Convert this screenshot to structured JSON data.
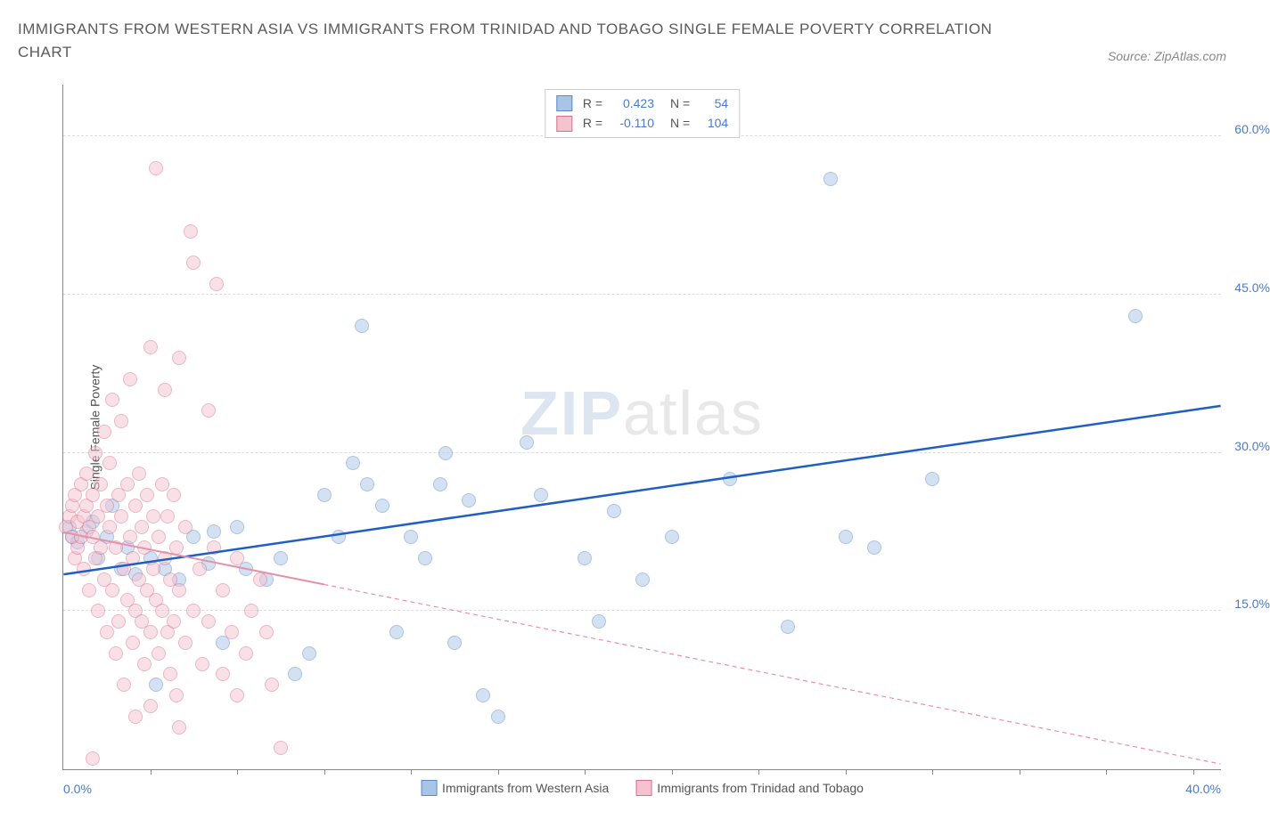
{
  "title": "IMMIGRANTS FROM WESTERN ASIA VS IMMIGRANTS FROM TRINIDAD AND TOBAGO SINGLE FEMALE POVERTY CORRELATION CHART",
  "source_label": "Source: ZipAtlas.com",
  "watermark_bold": "ZIP",
  "watermark_light": "atlas",
  "chart": {
    "type": "scatter",
    "y_axis_label": "Single Female Poverty",
    "xlim": [
      0,
      40
    ],
    "ylim": [
      0,
      65
    ],
    "x_min_label": "0.0%",
    "x_max_label": "40.0%",
    "y_ticks": [
      15,
      30,
      45,
      60
    ],
    "y_tick_labels": [
      "15.0%",
      "30.0%",
      "45.0%",
      "60.0%"
    ],
    "x_ticks": [
      3,
      6,
      9,
      12,
      15,
      18,
      21,
      24,
      27,
      30,
      33,
      36,
      39
    ],
    "background_color": "#ffffff",
    "grid_color": "#dddddd",
    "axis_color": "#888888",
    "label_color": "#4a7bc8",
    "marker_radius": 8,
    "marker_opacity": 0.5,
    "series": [
      {
        "name": "Immigrants from Western Asia",
        "color": "#6699dd",
        "fill": "#a8c5e8",
        "stroke": "#5a8bc4",
        "r": "0.423",
        "n": "54",
        "regression": {
          "x1": 0,
          "y1": 18.5,
          "x2": 40,
          "y2": 34.5,
          "color": "#1f5fbf",
          "width": 2.5,
          "dash": "none",
          "extrapolate_dash": "none",
          "solid_end_x": 40
        },
        "points": [
          [
            0.2,
            23
          ],
          [
            0.3,
            22
          ],
          [
            0.5,
            21.5
          ],
          [
            0.8,
            22.5
          ],
          [
            1.0,
            23.5
          ],
          [
            1.2,
            20
          ],
          [
            1.5,
            22
          ],
          [
            1.7,
            25
          ],
          [
            2.0,
            19
          ],
          [
            2.2,
            21
          ],
          [
            2.5,
            18.5
          ],
          [
            3.0,
            20
          ],
          [
            3.2,
            8
          ],
          [
            3.5,
            19
          ],
          [
            4.0,
            18
          ],
          [
            4.5,
            22
          ],
          [
            5.0,
            19.5
          ],
          [
            5.2,
            22.5
          ],
          [
            5.5,
            12
          ],
          [
            6.0,
            23
          ],
          [
            6.3,
            19
          ],
          [
            7.0,
            18
          ],
          [
            7.5,
            20
          ],
          [
            8.0,
            9
          ],
          [
            8.5,
            11
          ],
          [
            9.0,
            26
          ],
          [
            9.5,
            22
          ],
          [
            10.0,
            29
          ],
          [
            10.5,
            27
          ],
          [
            10.3,
            42
          ],
          [
            11.0,
            25
          ],
          [
            11.5,
            13
          ],
          [
            12.0,
            22
          ],
          [
            12.5,
            20
          ],
          [
            13.0,
            27
          ],
          [
            13.2,
            30
          ],
          [
            13.5,
            12
          ],
          [
            14.0,
            25.5
          ],
          [
            14.5,
            7
          ],
          [
            15.0,
            5
          ],
          [
            16.0,
            31
          ],
          [
            16.5,
            26
          ],
          [
            18.0,
            20
          ],
          [
            18.5,
            14
          ],
          [
            19.0,
            24.5
          ],
          [
            20.0,
            18
          ],
          [
            21.0,
            22
          ],
          [
            23.0,
            27.5
          ],
          [
            25.0,
            13.5
          ],
          [
            26.5,
            56
          ],
          [
            27.0,
            22
          ],
          [
            28.0,
            21
          ],
          [
            30.0,
            27.5
          ],
          [
            37.0,
            43
          ]
        ]
      },
      {
        "name": "Immigrants from Trinidad and Tobago",
        "color": "#e691a8",
        "fill": "#f5c2d0",
        "stroke": "#d6708c",
        "r": "-0.110",
        "n": "104",
        "regression": {
          "x1": 0,
          "y1": 22.5,
          "x2": 40,
          "y2": 0.5,
          "color": "#e691a8",
          "width": 2,
          "dash": "5,4",
          "extrapolate_dash": "5,4",
          "solid_end_x": 9
        },
        "points": [
          [
            0.1,
            23
          ],
          [
            0.2,
            24
          ],
          [
            0.3,
            22
          ],
          [
            0.3,
            25
          ],
          [
            0.4,
            20
          ],
          [
            0.4,
            26
          ],
          [
            0.5,
            23.5
          ],
          [
            0.5,
            21
          ],
          [
            0.6,
            22
          ],
          [
            0.6,
            27
          ],
          [
            0.7,
            24
          ],
          [
            0.7,
            19
          ],
          [
            0.8,
            25
          ],
          [
            0.8,
            28
          ],
          [
            0.9,
            23
          ],
          [
            0.9,
            17
          ],
          [
            1.0,
            26
          ],
          [
            1.0,
            22
          ],
          [
            1.1,
            30
          ],
          [
            1.1,
            20
          ],
          [
            1.2,
            24
          ],
          [
            1.2,
            15
          ],
          [
            1.3,
            27
          ],
          [
            1.3,
            21
          ],
          [
            1.4,
            32
          ],
          [
            1.4,
            18
          ],
          [
            1.5,
            25
          ],
          [
            1.5,
            13
          ],
          [
            1.6,
            23
          ],
          [
            1.6,
            29
          ],
          [
            1.7,
            17
          ],
          [
            1.7,
            35
          ],
          [
            1.8,
            21
          ],
          [
            1.8,
            11
          ],
          [
            1.9,
            26
          ],
          [
            1.9,
            14
          ],
          [
            2.0,
            24
          ],
          [
            2.0,
            33
          ],
          [
            2.1,
            19
          ],
          [
            2.1,
            8
          ],
          [
            2.2,
            27
          ],
          [
            2.2,
            16
          ],
          [
            2.3,
            22
          ],
          [
            2.3,
            37
          ],
          [
            2.4,
            20
          ],
          [
            2.4,
            12
          ],
          [
            2.5,
            25
          ],
          [
            2.5,
            15
          ],
          [
            2.6,
            18
          ],
          [
            2.6,
            28
          ],
          [
            2.7,
            14
          ],
          [
            2.7,
            23
          ],
          [
            2.8,
            10
          ],
          [
            2.8,
            21
          ],
          [
            2.9,
            17
          ],
          [
            2.9,
            26
          ],
          [
            3.0,
            40
          ],
          [
            3.0,
            13
          ],
          [
            3.1,
            24
          ],
          [
            3.1,
            19
          ],
          [
            3.2,
            57
          ],
          [
            3.2,
            16
          ],
          [
            3.3,
            22
          ],
          [
            3.3,
            11
          ],
          [
            3.4,
            27
          ],
          [
            3.4,
            15
          ],
          [
            3.5,
            20
          ],
          [
            3.5,
            36
          ],
          [
            3.6,
            13
          ],
          [
            3.6,
            24
          ],
          [
            3.7,
            9
          ],
          [
            3.7,
            18
          ],
          [
            3.8,
            26
          ],
          [
            3.8,
            14
          ],
          [
            3.9,
            21
          ],
          [
            3.9,
            7
          ],
          [
            4.0,
            39
          ],
          [
            4.0,
            17
          ],
          [
            4.2,
            12
          ],
          [
            4.2,
            23
          ],
          [
            4.4,
            51
          ],
          [
            4.5,
            15
          ],
          [
            4.5,
            48
          ],
          [
            4.7,
            19
          ],
          [
            4.8,
            10
          ],
          [
            5.0,
            34
          ],
          [
            5.0,
            14
          ],
          [
            5.2,
            21
          ],
          [
            5.3,
            46
          ],
          [
            5.5,
            9
          ],
          [
            5.5,
            17
          ],
          [
            5.8,
            13
          ],
          [
            6.0,
            20
          ],
          [
            6.0,
            7
          ],
          [
            6.3,
            11
          ],
          [
            6.5,
            15
          ],
          [
            6.8,
            18
          ],
          [
            7.0,
            13
          ],
          [
            7.2,
            8
          ],
          [
            7.5,
            2
          ],
          [
            1.0,
            1
          ],
          [
            2.5,
            5
          ],
          [
            4.0,
            4
          ],
          [
            3.0,
            6
          ]
        ]
      }
    ]
  }
}
